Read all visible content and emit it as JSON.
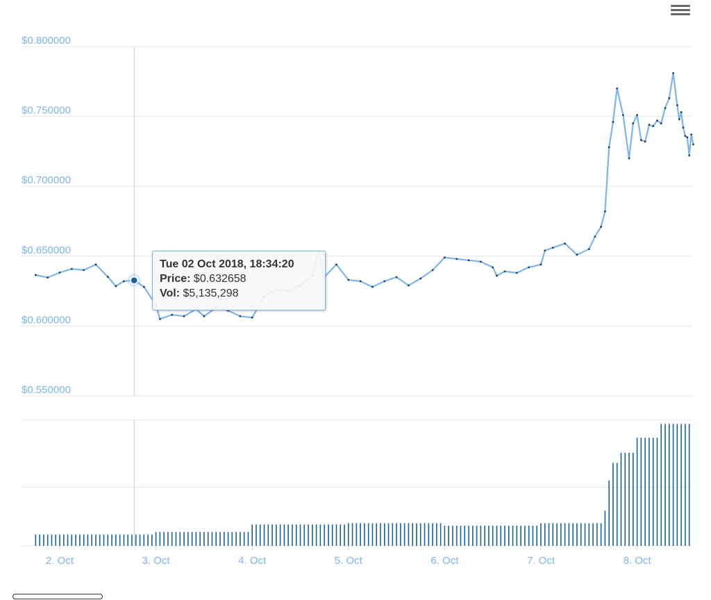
{
  "chart_data": {
    "type": "line",
    "price_axis": {
      "tick_labels": [
        "$0.800000",
        "$0.750000",
        "$0.700000",
        "$0.650000",
        "$0.600000",
        "$0.550000"
      ],
      "ticks": [
        0.8,
        0.75,
        0.7,
        0.65,
        0.6,
        0.55
      ],
      "ylim": [
        0.55,
        0.8
      ]
    },
    "x_axis": {
      "tick_labels": [
        "2. Oct",
        "3. Oct",
        "4. Oct",
        "5. Oct",
        "6. Oct",
        "7. Oct",
        "8. Oct"
      ],
      "ticks": [
        "2018-10-02",
        "2018-10-03",
        "2018-10-04",
        "2018-10-05",
        "2018-10-06",
        "2018-10-07",
        "2018-10-08"
      ],
      "xlim": [
        "2018-10-01 18:00",
        "2018-10-08 12:00"
      ]
    },
    "grid": true,
    "series": [
      {
        "type": "line",
        "color": "#7cb5ec",
        "points": [
          [
            "2018-10-01 18:00",
            0.6365
          ],
          [
            "2018-10-01 21:00",
            0.6347
          ],
          [
            "2018-10-02 00:00",
            0.6382
          ],
          [
            "2018-10-02 03:00",
            0.6408
          ],
          [
            "2018-10-02 06:00",
            0.64
          ],
          [
            "2018-10-02 09:00",
            0.644
          ],
          [
            "2018-10-02 12:00",
            0.6352
          ],
          [
            "2018-10-02 14:00",
            0.6285
          ],
          [
            "2018-10-02 16:00",
            0.632
          ],
          [
            "2018-10-02 18:34",
            0.632658
          ],
          [
            "2018-10-02 21:00",
            0.628
          ],
          [
            "2018-10-03 00:00",
            0.615
          ],
          [
            "2018-10-03 01:00",
            0.605
          ],
          [
            "2018-10-03 04:00",
            0.608
          ],
          [
            "2018-10-03 07:00",
            0.607
          ],
          [
            "2018-10-03 10:00",
            0.612
          ],
          [
            "2018-10-03 12:00",
            0.607
          ],
          [
            "2018-10-03 15:00",
            0.613
          ],
          [
            "2018-10-03 18:00",
            0.611
          ],
          [
            "2018-10-03 21:00",
            0.607
          ],
          [
            "2018-10-04 00:00",
            0.606
          ],
          [
            "2018-10-04 03:00",
            0.621
          ],
          [
            "2018-10-04 06:00",
            0.626
          ],
          [
            "2018-10-04 09:00",
            0.625
          ],
          [
            "2018-10-04 12:00",
            0.629
          ],
          [
            "2018-10-04 15:00",
            0.636
          ],
          [
            "2018-10-04 16:30",
            0.653
          ],
          [
            "2018-10-04 18:00",
            0.635
          ],
          [
            "2018-10-04 21:00",
            0.644
          ],
          [
            "2018-10-05 00:00",
            0.633
          ],
          [
            "2018-10-05 03:00",
            0.632
          ],
          [
            "2018-10-05 06:00",
            0.628
          ],
          [
            "2018-10-05 09:00",
            0.632
          ],
          [
            "2018-10-05 12:00",
            0.635
          ],
          [
            "2018-10-05 15:00",
            0.629
          ],
          [
            "2018-10-05 18:00",
            0.634
          ],
          [
            "2018-10-05 21:00",
            0.64
          ],
          [
            "2018-10-06 00:00",
            0.649
          ],
          [
            "2018-10-06 03:00",
            0.648
          ],
          [
            "2018-10-06 06:00",
            0.647
          ],
          [
            "2018-10-06 09:00",
            0.646
          ],
          [
            "2018-10-06 12:00",
            0.642
          ],
          [
            "2018-10-06 13:00",
            0.636
          ],
          [
            "2018-10-06 15:00",
            0.639
          ],
          [
            "2018-10-06 18:00",
            0.638
          ],
          [
            "2018-10-06 21:00",
            0.642
          ],
          [
            "2018-10-07 00:00",
            0.644
          ],
          [
            "2018-10-07 01:00",
            0.654
          ],
          [
            "2018-10-07 03:00",
            0.656
          ],
          [
            "2018-10-07 06:00",
            0.659
          ],
          [
            "2018-10-07 09:00",
            0.651
          ],
          [
            "2018-10-07 12:00",
            0.655
          ],
          [
            "2018-10-07 13:30",
            0.664
          ],
          [
            "2018-10-07 15:00",
            0.671
          ],
          [
            "2018-10-07 16:00",
            0.682
          ],
          [
            "2018-10-07 17:00",
            0.728
          ],
          [
            "2018-10-07 18:00",
            0.746
          ],
          [
            "2018-10-07 19:00",
            0.77
          ],
          [
            "2018-10-07 20:30",
            0.751
          ],
          [
            "2018-10-07 22:00",
            0.72
          ],
          [
            "2018-10-07 23:00",
            0.745
          ],
          [
            "2018-10-08 00:00",
            0.751
          ],
          [
            "2018-10-08 01:00",
            0.733
          ],
          [
            "2018-10-08 02:00",
            0.732
          ],
          [
            "2018-10-08 03:00",
            0.744
          ],
          [
            "2018-10-08 04:00",
            0.743
          ],
          [
            "2018-10-08 05:00",
            0.747
          ],
          [
            "2018-10-08 06:00",
            0.745
          ],
          [
            "2018-10-08 07:00",
            0.756
          ],
          [
            "2018-10-08 08:00",
            0.763
          ],
          [
            "2018-10-08 09:00",
            0.781
          ],
          [
            "2018-10-08 10:00",
            0.758
          ],
          [
            "2018-10-08 10:30",
            0.748
          ],
          [
            "2018-10-08 11:00",
            0.753
          ],
          [
            "2018-10-08 11:30",
            0.742
          ],
          [
            "2018-10-08 12:00",
            0.736
          ],
          [
            "2018-10-08 12:30",
            0.735
          ],
          [
            "2018-10-08 13:00",
            0.722
          ],
          [
            "2018-10-08 13:30",
            0.737
          ],
          [
            "2018-10-08 14:00",
            0.73
          ]
        ]
      },
      {
        "type": "column",
        "color": "#16629a",
        "note_values": "relative volume levels (no volume axis printed)",
        "segments": [
          {
            "from": "2018-10-01 18:00",
            "to": "2018-10-03 00:00",
            "level": 0.09
          },
          {
            "from": "2018-10-03 00:00",
            "to": "2018-10-04 00:00",
            "level": 0.11
          },
          {
            "from": "2018-10-04 00:00",
            "to": "2018-10-05 00:00",
            "level": 0.17
          },
          {
            "from": "2018-10-05 00:00",
            "to": "2018-10-06 00:00",
            "level": 0.18
          },
          {
            "from": "2018-10-06 00:00",
            "to": "2018-10-07 00:00",
            "level": 0.16
          },
          {
            "from": "2018-10-07 00:00",
            "to": "2018-10-07 16:00",
            "level": 0.18
          },
          {
            "from": "2018-10-07 16:00",
            "to": "2018-10-07 17:00",
            "level": 0.28
          },
          {
            "from": "2018-10-07 17:00",
            "to": "2018-10-07 18:00",
            "level": 0.52
          },
          {
            "from": "2018-10-07 18:00",
            "to": "2018-10-07 20:00",
            "level": 0.66
          },
          {
            "from": "2018-10-07 20:00",
            "to": "2018-10-08 00:00",
            "level": 0.74
          },
          {
            "from": "2018-10-08 00:00",
            "to": "2018-10-08 06:00",
            "level": 0.86
          },
          {
            "from": "2018-10-08 06:00",
            "to": "2018-10-08 14:00",
            "level": 0.97
          }
        ]
      }
    ],
    "tooltip": {
      "date": "Tue 02 Oct 2018, 18:34:20",
      "price_label": "Price:",
      "price_value": "$0.632658",
      "vol_label": "Vol:",
      "vol_value": "$5,135,298",
      "x": "2018-10-02 18:34",
      "y": 0.632658
    }
  },
  "colors": {
    "line": "#7cb5ec",
    "volume": "#16629a",
    "grid": "#e6e6e6",
    "axis_label": "#7cb5ec",
    "crosshair": "#cccccc"
  },
  "menu_icon": "hamburger-menu-icon"
}
